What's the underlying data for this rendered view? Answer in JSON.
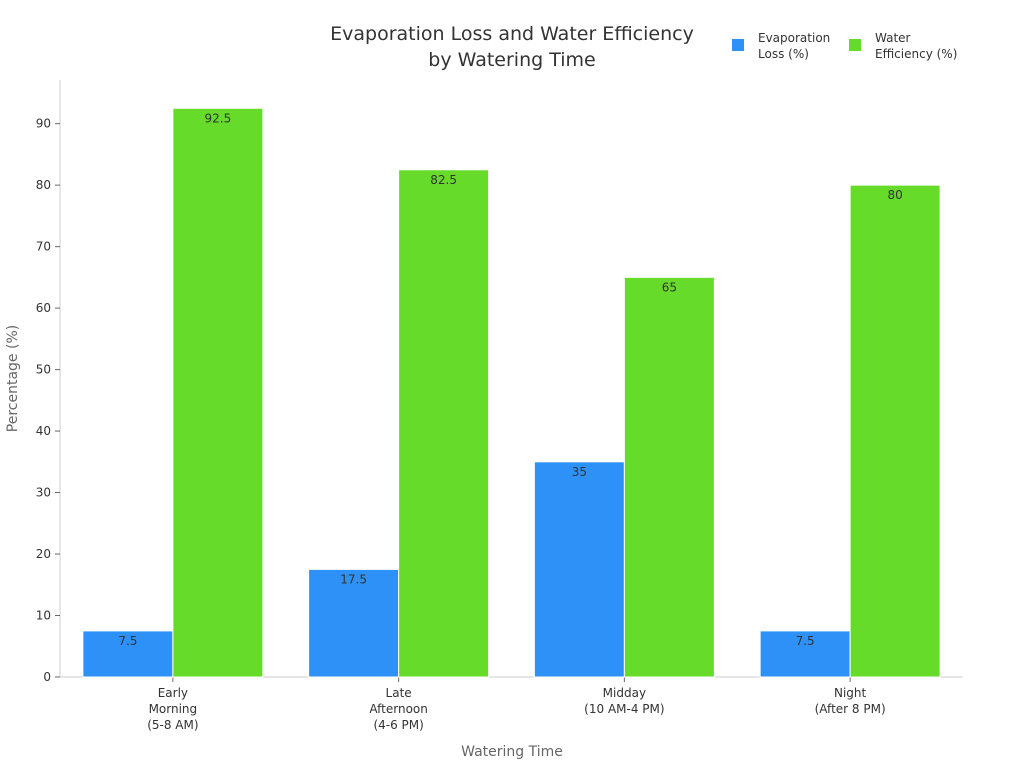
{
  "chart_data": {
    "type": "bar",
    "title": [
      "Evaporation Loss and Water Efficiency",
      "by Watering Time"
    ],
    "xlabel": "Watering Time",
    "ylabel": "Percentage (%)",
    "categories": [
      [
        "Early",
        "Morning",
        "(5-8 AM)"
      ],
      [
        "Late",
        "Afternoon",
        "(4-6 PM)"
      ],
      [
        "Midday",
        "(10 AM-4 PM)"
      ],
      [
        "Night",
        "(After 8 PM)"
      ]
    ],
    "series": [
      {
        "name": [
          "Evaporation",
          "Loss (%)"
        ],
        "values": [
          7.5,
          17.5,
          35,
          7.5
        ],
        "color": "#2e91f7"
      },
      {
        "name": [
          "Water",
          "Efficiency (%)"
        ],
        "values": [
          92.5,
          82.5,
          65,
          80
        ],
        "color": "#66db2a"
      }
    ],
    "ylim": [
      0,
      97.1
    ],
    "yticks": [
      0,
      10,
      20,
      30,
      40,
      50,
      60,
      70,
      80,
      90
    ],
    "grid": false,
    "legend": "top-right"
  }
}
